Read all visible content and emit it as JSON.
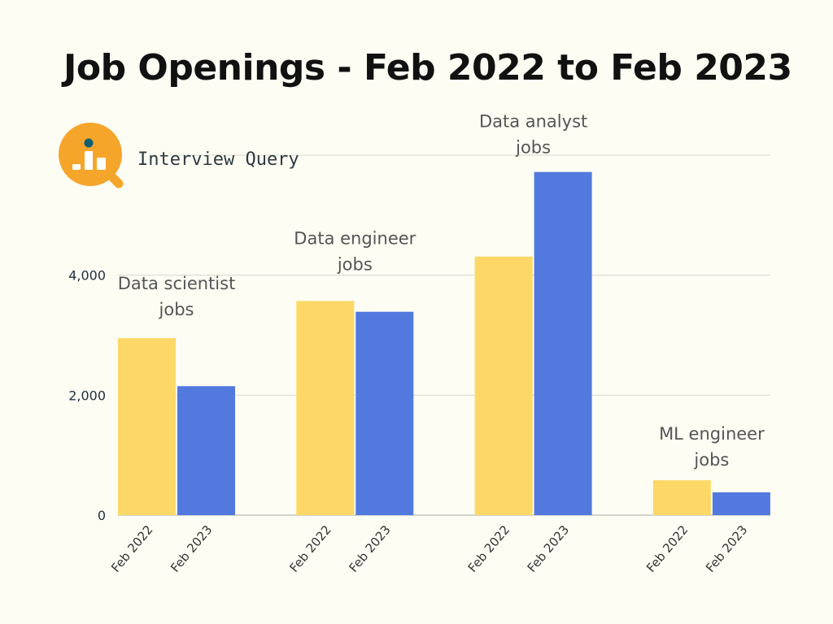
{
  "chart_data": {
    "type": "bar",
    "title": "Job Openings - Feb 2022 to Feb 2023",
    "categories": [
      "Data scientist jobs",
      "Data engineer jobs",
      "Data analyst jobs",
      "ML engineer jobs"
    ],
    "category_labels": [
      [
        "Data scientist",
        "jobs"
      ],
      [
        "Data engineer",
        "jobs"
      ],
      [
        "Data analyst",
        "jobs"
      ],
      [
        "ML engineer",
        "jobs"
      ]
    ],
    "series": [
      {
        "name": "Feb 2022",
        "color": "#fdd866",
        "values": [
          2950,
          3570,
          4310,
          580
        ]
      },
      {
        "name": "Feb 2023",
        "color": "#5279de",
        "values": [
          2150,
          3390,
          5720,
          380
        ]
      }
    ],
    "yticks": [
      0,
      2000,
      4000
    ],
    "ytick_labels": [
      "0",
      "2,000",
      "4,000"
    ],
    "gridlines": [
      2000,
      4000,
      6000
    ],
    "ylim": [
      0,
      6000
    ],
    "grid": true,
    "xlabel": "",
    "ylabel": ""
  },
  "logo": {
    "text": "Interview Query",
    "color": "#f6a52b",
    "dot_color": "#0e5e73"
  }
}
